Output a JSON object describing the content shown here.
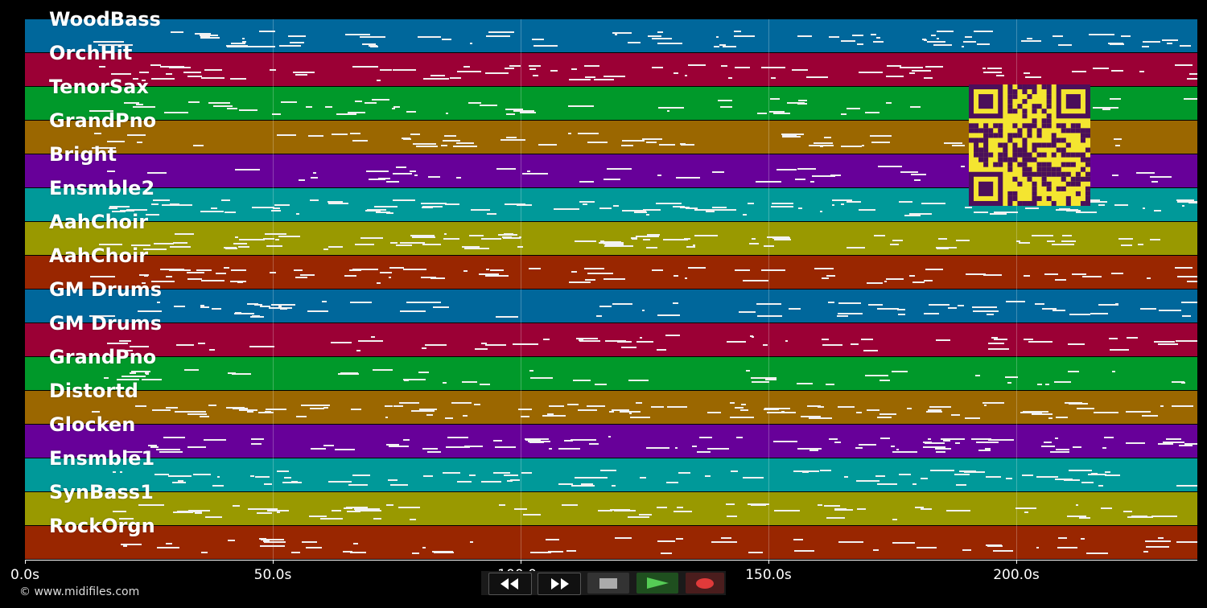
{
  "tracks": [
    {
      "name": "WoodBass",
      "color": "#00679b"
    },
    {
      "name": "OrchHit",
      "color": "#9b0035"
    },
    {
      "name": "TenorSax",
      "color": "#00992a"
    },
    {
      "name": "GrandPno",
      "color": "#9b6700"
    },
    {
      "name": "Bright",
      "color": "#670099"
    },
    {
      "name": "Ensmble2",
      "color": "#009999"
    },
    {
      "name": "AahChoir",
      "color": "#999900"
    },
    {
      "name": "AahChoir",
      "color": "#992600"
    },
    {
      "name": "GM Drums",
      "color": "#00679b"
    },
    {
      "name": "GM Drums",
      "color": "#9b0035"
    },
    {
      "name": "GrandPno",
      "color": "#00992a"
    },
    {
      "name": "Distortd",
      "color": "#9b6700"
    },
    {
      "name": "Glocken",
      "color": "#670099"
    },
    {
      "name": "Ensmble1",
      "color": "#009999"
    },
    {
      "name": "SynBass1",
      "color": "#999900"
    },
    {
      "name": "RockOrgn",
      "color": "#992600"
    }
  ],
  "timeline": {
    "ticks": [
      "0.0s",
      "50.0s",
      "100.0s",
      "150.0s",
      "200.0s"
    ],
    "tick_values": [
      0,
      50,
      100,
      150,
      200
    ],
    "range": [
      0,
      236.5
    ]
  },
  "transport": {
    "rewind_icon": "rewind-icon",
    "fastforward_icon": "fast-forward-icon",
    "stop_icon": "stop-icon",
    "play_icon": "play-icon",
    "record_icon": "record-icon"
  },
  "footer": {
    "copyright": "© www.midifiles.com"
  }
}
